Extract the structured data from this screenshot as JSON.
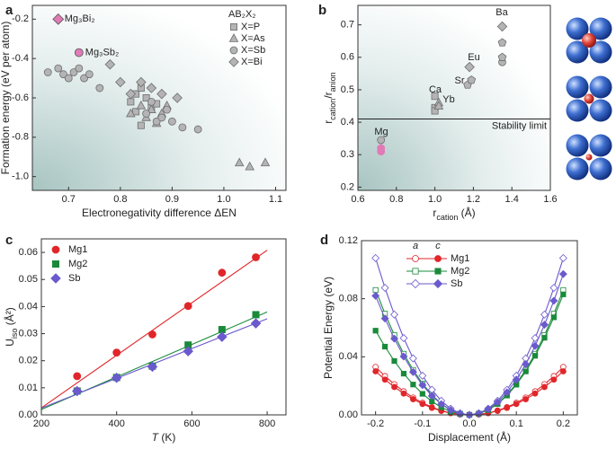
{
  "chart_data": [
    {
      "type": "scatter",
      "panel_label": "a",
      "xlabel": "Electronegativity difference ΔEN",
      "ylabel": "Formation energy (eV per atom)",
      "xlim": [
        0.63,
        1.12
      ],
      "ylim": [
        -1.07,
        -0.13
      ],
      "xticks": [
        0.7,
        0.8,
        0.9,
        {
          "value": 1,
          "label": "1.0"
        },
        1.1
      ],
      "yticks": [
        {
          "value": -1,
          "label": "-1.0"
        },
        -0.8,
        -0.6,
        -0.4,
        -0.2
      ],
      "background": "gradient",
      "legend": "upper right",
      "legend_title": "AB₂X₂",
      "series": [
        {
          "name": "X=P",
          "marker": "square",
          "color": "#b4b4b4",
          "x": [
            0.82,
            0.83,
            0.84,
            0.83,
            0.84,
            0.85,
            0.86,
            0.87
          ],
          "values": [
            -0.62,
            -0.58,
            -0.55,
            -0.67,
            -0.74,
            -0.6,
            -0.65,
            -0.63
          ]
        },
        {
          "name": "X=As",
          "marker": "triangle",
          "color": "#b4b4b4",
          "x": [
            0.82,
            0.84,
            0.85,
            0.86,
            0.87,
            0.88,
            0.89,
            1.03,
            1.05,
            1.08
          ],
          "values": [
            -0.68,
            -0.64,
            -0.7,
            -0.66,
            -0.73,
            -0.68,
            -0.64,
            -0.93,
            -0.95,
            -0.93
          ]
        },
        {
          "name": "X=Sb",
          "marker": "circle",
          "color": "#b4b4b4",
          "x": [
            0.66,
            0.68,
            0.69,
            0.7,
            0.71,
            0.72,
            0.73,
            0.74,
            0.76,
            0.85,
            0.87,
            0.88,
            0.9,
            0.92,
            0.95,
            0.86,
            0.89
          ],
          "values": [
            -0.47,
            -0.45,
            -0.48,
            -0.5,
            -0.47,
            -0.45,
            -0.5,
            -0.48,
            -0.55,
            -0.68,
            -0.72,
            -0.7,
            -0.72,
            -0.75,
            -0.76,
            -0.62,
            -0.66
          ]
        },
        {
          "name": "X=Bi",
          "marker": "diamond",
          "color": "#b4b4b4",
          "x": [
            0.78,
            0.8,
            0.84,
            0.86,
            0.88,
            0.91,
            0.82
          ],
          "values": [
            -0.43,
            -0.52,
            -0.52,
            -0.55,
            -0.58,
            -0.6,
            -0.58
          ]
        }
      ],
      "highlight_color": "#e07bb5",
      "highlights": [
        {
          "label": "Mg₃Bi₂",
          "x": 0.68,
          "y": -0.2,
          "marker": "diamond"
        },
        {
          "label": "Mg₃Sb₂",
          "x": 0.72,
          "y": -0.37,
          "marker": "circle"
        }
      ]
    },
    {
      "type": "scatter",
      "panel_label": "b",
      "xlabel": [
        {
          "text": "r"
        },
        {
          "text": "cation",
          "sub": true
        },
        {
          "text": " (Å)"
        }
      ],
      "ylabel": [
        {
          "text": "r"
        },
        {
          "text": "cation",
          "sub": true
        },
        {
          "text": "/r"
        },
        {
          "text": "anion",
          "sub": true
        }
      ],
      "xlim": [
        0.6,
        1.6
      ],
      "ylim": [
        0.19,
        0.76
      ],
      "xticks": [
        0.6,
        0.8,
        {
          "value": 1,
          "label": "1.0"
        },
        1.2,
        1.4,
        1.6
      ],
      "yticks": [
        0.2,
        0.3,
        0.4,
        0.5,
        0.6,
        0.7
      ],
      "background": "gradient",
      "series": [
        {
          "marker": "square",
          "color": "#b4b4b4",
          "x": [
            1.0,
            1.0,
            1.0
          ],
          "values": [
            0.48,
            0.445,
            0.435
          ]
        },
        {
          "marker": "triangle",
          "color": "#b4b4b4",
          "x": [
            1.02,
            1.02
          ],
          "values": [
            0.46,
            0.45
          ]
        },
        {
          "marker": "circle",
          "color": "#b4b4b4",
          "x": [
            0.72,
            1.35
          ],
          "values": [
            0.345,
            0.585
          ]
        },
        {
          "marker": "pentagon",
          "color": "#b4b4b4",
          "x": [
            1.17,
            1.19,
            1.35,
            1.35
          ],
          "values": [
            0.515,
            0.53,
            0.645,
            0.6
          ]
        },
        {
          "marker": "diamond",
          "color": "#b4b4b4",
          "x": [
            1.18,
            1.35
          ],
          "values": [
            0.57,
            0.695
          ]
        },
        {
          "marker": "circle",
          "color": "#e07bb5",
          "x": [
            0.72,
            0.72
          ],
          "values": [
            0.32,
            0.31
          ]
        }
      ],
      "hline": {
        "value": 0.41,
        "label": "Stability limit"
      },
      "annotations": [
        "Mg",
        "Ca",
        "Yb",
        "Sr",
        "Eu",
        "Ba"
      ]
    },
    {
      "type": "scatter",
      "panel_label": "c",
      "xlabel": [
        {
          "text": "T",
          "italic": true
        },
        {
          "text": " (K)"
        }
      ],
      "ylabel": [
        {
          "text": "U"
        },
        {
          "text": "iso",
          "sub": true
        },
        {
          "text": " (Å²)"
        }
      ],
      "xlim": [
        200,
        850
      ],
      "ylim": [
        0,
        0.065
      ],
      "xticks": [
        200,
        400,
        600,
        800
      ],
      "yticks": [
        {
          "value": 0,
          "label": "0.00"
        },
        0.01,
        0.02,
        0.03,
        0.04,
        0.05,
        0.06
      ],
      "legend": "upper left",
      "series": [
        {
          "name": "Mg1",
          "marker": "circle",
          "color": "#e0262a",
          "x": [
            295,
            400,
            495,
            590,
            680,
            770
          ],
          "values": [
            0.0143,
            0.023,
            0.0297,
            0.0402,
            0.0525,
            0.0582
          ],
          "fit_x": [
            200,
            800
          ],
          "fit_values": [
            0.0026,
            0.0608
          ]
        },
        {
          "name": "Mg2",
          "marker": "square",
          "color": "#1a8a3a",
          "x": [
            295,
            400,
            495,
            590,
            680,
            770
          ],
          "values": [
            0.0088,
            0.0138,
            0.018,
            0.0258,
            0.0315,
            0.037
          ],
          "fit_x": [
            200,
            800
          ],
          "fit_values": [
            0.002,
            0.038
          ]
        },
        {
          "name": "Sb",
          "marker": "diamond",
          "color": "#6a5acd",
          "x": [
            295,
            400,
            495,
            590,
            680,
            770
          ],
          "values": [
            0.0088,
            0.0137,
            0.0178,
            0.0235,
            0.0288,
            0.0338
          ],
          "fit_x": [
            200,
            800
          ],
          "fit_values": [
            0.0025,
            0.0355
          ]
        }
      ]
    },
    {
      "type": "line",
      "panel_label": "d",
      "xlabel": "Displacement (Å)",
      "ylabel": "Potential Energy (eV)",
      "xlim": [
        -0.23,
        0.23
      ],
      "ylim": [
        0,
        0.12
      ],
      "xticks": [
        -0.2,
        -0.1,
        {
          "value": 0,
          "label": "0.0"
        },
        0.1,
        0.2
      ],
      "yticks": [
        {
          "value": 0,
          "label": "0.00"
        },
        0.04,
        0.08,
        0.12
      ],
      "legend": "upper center",
      "legend_columns": [
        "a",
        "c"
      ],
      "x": [
        -0.2,
        -0.18,
        -0.16,
        -0.14,
        -0.12,
        -0.1,
        -0.08,
        -0.06,
        -0.04,
        -0.02,
        0,
        0.02,
        0.04,
        0.06,
        0.08,
        0.1,
        0.12,
        0.14,
        0.16,
        0.18,
        0.2
      ],
      "series": [
        {
          "name": "Mg1",
          "marker": "circle",
          "color": "#e0262a",
          "values_a": [
            0.033,
            0.0267,
            0.0211,
            0.0162,
            0.0119,
            0.0083,
            0.0053,
            0.003,
            0.0013,
            0.0003,
            0,
            0.0003,
            0.0013,
            0.003,
            0.0053,
            0.0083,
            0.0119,
            0.0162,
            0.0211,
            0.0267,
            0.033
          ],
          "values_c": [
            0.03,
            0.0243,
            0.0192,
            0.0147,
            0.0108,
            0.0075,
            0.0048,
            0.0027,
            0.0012,
            0.0003,
            0,
            0.0003,
            0.0012,
            0.0027,
            0.0048,
            0.0075,
            0.0108,
            0.0147,
            0.0192,
            0.0243,
            0.03
          ]
        },
        {
          "name": "Mg2",
          "marker": "square",
          "color": "#1a8a3a",
          "values_a": [
            0.086,
            0.0697,
            0.055,
            0.0421,
            0.031,
            0.0215,
            0.0138,
            0.0077,
            0.0034,
            0.0009,
            0,
            0.0009,
            0.0034,
            0.0077,
            0.0138,
            0.0215,
            0.031,
            0.0421,
            0.055,
            0.0697,
            0.086
          ],
          "values_c": [
            0.058,
            0.047,
            0.0371,
            0.0284,
            0.0209,
            0.0145,
            0.0093,
            0.0052,
            0.0023,
            0.0006,
            0,
            0.0008,
            0.0033,
            0.0075,
            0.0133,
            0.0208,
            0.0299,
            0.0407,
            0.0531,
            0.0672,
            0.083
          ]
        },
        {
          "name": "Sb",
          "marker": "diamond",
          "color": "#6a5acd",
          "values_a": [
            0.108,
            0.0875,
            0.0691,
            0.0529,
            0.0389,
            0.027,
            0.0173,
            0.0097,
            0.0043,
            0.0011,
            0,
            0.0011,
            0.0043,
            0.0097,
            0.0173,
            0.027,
            0.0389,
            0.0529,
            0.0691,
            0.0875,
            0.108
          ],
          "values_c": [
            0.082,
            0.0664,
            0.0525,
            0.0402,
            0.0295,
            0.0205,
            0.0131,
            0.0074,
            0.0033,
            0.0008,
            0,
            0.001,
            0.0039,
            0.0087,
            0.0155,
            0.0243,
            0.0349,
            0.0475,
            0.0621,
            0.0786,
            0.097
          ]
        }
      ]
    }
  ]
}
